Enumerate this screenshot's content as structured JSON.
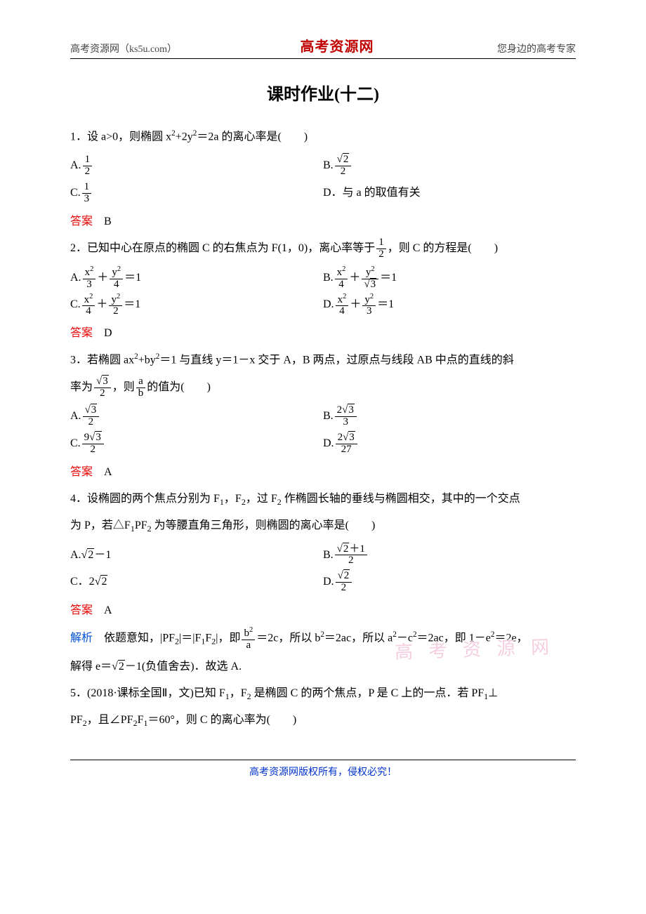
{
  "header": {
    "left": "高考资源网（ks5u.com）",
    "center": "高考资源网",
    "right": "您身边的高考专家"
  },
  "title": "课时作业(十二)",
  "q1": {
    "stem_prefix": "1．设 a>0，则椭圆 x",
    "stem_mid1": "+2y",
    "stem_mid2": "＝2a 的离心率是(　　)",
    "optA_prefix": "A.",
    "optA_num": "1",
    "optA_den": "2",
    "optB_prefix": "B.",
    "optB_num_rad": "2",
    "optB_den": "2",
    "optC_prefix": "C.",
    "optC_num": "1",
    "optC_den": "3",
    "optD": "D．与 a 的取值有关",
    "answer_label": "答案",
    "answer": "　B"
  },
  "q2": {
    "stem_a": "2．已知中心在原点的椭圆 C 的右焦点为 F(1，0)，离心率等于",
    "stem_frac_num": "1",
    "stem_frac_den": "2",
    "stem_b": "，则 C 的方程是(　　)",
    "optA_prefix": "A.",
    "optA_n1": "x",
    "optA_d1": "3",
    "optA_n2": "y",
    "optA_d2": "4",
    "optA_tail": "＝1",
    "optB_prefix": "B.",
    "optB_n1": "x",
    "optB_d1": "4",
    "optB_n2": "y",
    "optB_d2_rad": "3",
    "optB_tail": "＝1",
    "optC_prefix": "C.",
    "optC_n1": "x",
    "optC_d1": "4",
    "optC_n2": "y",
    "optC_d2": "2",
    "optC_tail": "＝1",
    "optD_prefix": "D.",
    "optD_n1": "x",
    "optD_d1": "4",
    "optD_n2": "y",
    "optD_d2": "3",
    "optD_tail": "＝1",
    "answer_label": "答案",
    "answer": "　D"
  },
  "q3": {
    "stem_a": "3．若椭圆 ax",
    "stem_b": "+by",
    "stem_c": "＝1 与直线 y＝1－x 交于 A，B 两点，过原点与线段 AB 中点的直线的斜",
    "stem_d": "率为",
    "stem_frac1_num_rad": "3",
    "stem_frac1_den": "2",
    "stem_e": "，则",
    "stem_frac2_num": "a",
    "stem_frac2_den": "b",
    "stem_f": "的值为(　　)",
    "optA_prefix": "A.",
    "optA_num_rad": "3",
    "optA_den": "2",
    "optB_prefix": "B.",
    "optB_num_pre": "2",
    "optB_num_rad": "3",
    "optB_den": "3",
    "optC_prefix": "C.",
    "optC_num_pre": "9",
    "optC_num_rad": "3",
    "optC_den": "2",
    "optD_prefix": "D.",
    "optD_num_pre": "2",
    "optD_num_rad": "3",
    "optD_den": "27",
    "answer_label": "答案",
    "answer": "　A"
  },
  "q4": {
    "stem_a": "4．设椭圆的两个焦点分别为 F",
    "stem_b": "，F",
    "stem_c": "，过 F",
    "stem_d": " 作椭圆长轴的垂线与椭圆相交，其中的一个交点",
    "stem_e": "为 P，若△F",
    "stem_f": "PF",
    "stem_g": " 为等腰直角三角形，则椭圆的离心率是(　　)",
    "optA_prefix": "A.",
    "optA_rad": "2",
    "optA_tail": "－1",
    "optB_prefix": "B.",
    "optB_num_rad": "2",
    "optB_num_tail": "＋1",
    "optB_den": "2",
    "optC": "C．2",
    "optC_rad": "2",
    "optD_prefix": "D.",
    "optD_num_rad": "2",
    "optD_den": "2",
    "answer_label": "答案",
    "answer": "　A",
    "analysis_label": "解析",
    "ana_a": "　依题意知，|PF",
    "ana_b": "|＝|F",
    "ana_c": "F",
    "ana_d": "|，即",
    "ana_frac_num": "b",
    "ana_frac_den": "a",
    "ana_e": "＝2c，所以 b",
    "ana_f": "＝2ac，所以 a",
    "ana_g": "－c",
    "ana_h": "＝2ac，即 1－e",
    "ana_i": "＝2e，",
    "ana_j": "解得 e＝",
    "ana_rad": "2",
    "ana_k": "－1(负值舍去)．故选 A."
  },
  "q5": {
    "stem_a": "5．(2018·课标全国Ⅱ，文)已知 F",
    "stem_b": "，F",
    "stem_c": " 是椭圆 C 的两个焦点，P 是 C 上的一点．若 PF",
    "stem_d": "⊥",
    "stem_e": "PF",
    "stem_f": "，且∠PF",
    "stem_g": "F",
    "stem_h": "＝60°，则 C 的离心率为(　　)"
  },
  "watermark": "高 考 资 源 网",
  "footer": "高考资源网版权所有，侵权必究！"
}
